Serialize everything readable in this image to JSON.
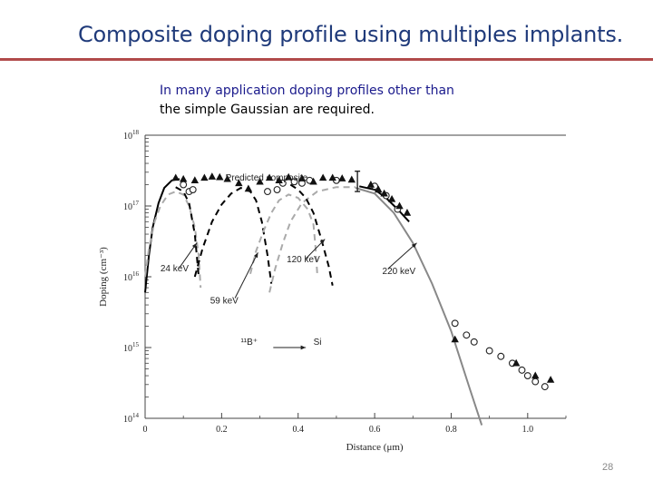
{
  "slide": {
    "title": "Composite doping profile using multiples implants.",
    "body_lines": [
      "In many application doping profiles other than",
      "the simple Gaussian are required."
    ],
    "slide_number": "28"
  },
  "chart_data": {
    "type": "line",
    "title": "",
    "xlabel": "Distance (μm)",
    "ylabel": "Doping (cm⁻³)",
    "xlim": [
      0,
      1.1
    ],
    "ylim": [
      100000000000000.0,
      1e+18
    ],
    "y_scale": "log",
    "x_ticks": [
      {
        "v": 0,
        "label": "0"
      },
      {
        "v": 0.2,
        "label": "0.2"
      },
      {
        "v": 0.4,
        "label": "0.4"
      },
      {
        "v": 0.6,
        "label": "0.6"
      },
      {
        "v": 0.8,
        "label": "0.8"
      },
      {
        "v": 1.0,
        "label": "1.0"
      }
    ],
    "y_ticks": [
      {
        "v": 1e+18,
        "base": "10",
        "exp": "18"
      },
      {
        "v": 1e+17,
        "base": "10",
        "exp": "17"
      },
      {
        "v": 1e+16,
        "base": "10",
        "exp": "16"
      },
      {
        "v": 1000000000000000.0,
        "base": "10",
        "exp": "15"
      },
      {
        "v": 100000000000000.0,
        "base": "10",
        "exp": "14"
      }
    ],
    "annotations": [
      {
        "text": "Predicted composite",
        "x": 0.21,
        "y": 2.3e+17
      },
      {
        "text": "24 keV",
        "x": 0.04,
        "y": 1.2e+16
      },
      {
        "text": "59 keV",
        "x": 0.17,
        "y": 4200000000000000.0
      },
      {
        "text": "120 keV",
        "x": 0.37,
        "y": 1.6e+16
      },
      {
        "text": "220 keV",
        "x": 0.62,
        "y": 1.1e+16
      },
      {
        "text": "¹¹B⁺",
        "x": 0.25,
        "y": 1100000000000000.0
      },
      {
        "text": "Si",
        "x": 0.44,
        "y": 1100000000000000.0
      }
    ],
    "series": [
      {
        "role": "composite-predicted",
        "color": "#000000",
        "dash": "solid",
        "points": [
          [
            0.0,
            6000000000000000.0
          ],
          [
            0.01,
            2e+16
          ],
          [
            0.02,
            5e+16
          ],
          [
            0.035,
            1.1e+17
          ],
          [
            0.05,
            1.8e+17
          ],
          [
            0.07,
            2.3e+17
          ],
          [
            0.09,
            2.4e+17
          ]
        ]
      },
      {
        "role": "24keV-implant",
        "color": "#aaaaaa",
        "dash": "dashed",
        "points": [
          [
            0.0,
            1e+16
          ],
          [
            0.01,
            2.5e+16
          ],
          [
            0.025,
            6e+16
          ],
          [
            0.04,
            1e+17
          ],
          [
            0.06,
            1.45e+17
          ],
          [
            0.08,
            1.6e+17
          ],
          [
            0.1,
            1.45e+17
          ],
          [
            0.115,
            1e+17
          ],
          [
            0.13,
            5e+16
          ],
          [
            0.14,
            2e+16
          ],
          [
            0.145,
            7000000000000000.0
          ]
        ]
      },
      {
        "role": "24keV-implant-dark",
        "color": "#000000",
        "dash": "dashed",
        "points": [
          [
            0.08,
            1.85e+17
          ],
          [
            0.1,
            1.6e+17
          ],
          [
            0.115,
            1.1e+17
          ],
          [
            0.13,
            4e+16
          ],
          [
            0.14,
            1e+16
          ]
        ]
      },
      {
        "role": "59keV-implant",
        "color": "#000000",
        "dash": "dashed",
        "points": [
          [
            0.13,
            1e+16
          ],
          [
            0.15,
            2.5e+16
          ],
          [
            0.175,
            6e+16
          ],
          [
            0.2,
            1.05e+17
          ],
          [
            0.225,
            1.5e+17
          ],
          [
            0.25,
            1.8e+17
          ],
          [
            0.275,
            1.6e+17
          ],
          [
            0.29,
            1.2e+17
          ],
          [
            0.305,
            6e+16
          ],
          [
            0.32,
            2e+16
          ],
          [
            0.33,
            8000000000000000.0
          ]
        ]
      },
      {
        "role": "120keV-implant",
        "color": "#aaaaaa",
        "dash": "dashed",
        "points": [
          [
            0.275,
            1.1e+16
          ],
          [
            0.29,
            2.3e+16
          ],
          [
            0.31,
            4.5e+16
          ],
          [
            0.33,
            8e+16
          ],
          [
            0.35,
            1.2e+17
          ],
          [
            0.375,
            1.45e+17
          ],
          [
            0.4,
            1.3e+17
          ],
          [
            0.425,
            9e+16
          ],
          [
            0.44,
            5.5e+16
          ],
          [
            0.445,
            2.8e+16
          ],
          [
            0.45,
            1.1e+16
          ]
        ]
      },
      {
        "role": "220keV-implant-rise",
        "color": "#aaaaaa",
        "dash": "dashed",
        "points": [
          [
            0.325,
            6000000000000000.0
          ],
          [
            0.34,
            1.3e+16
          ],
          [
            0.36,
            3e+16
          ],
          [
            0.38,
            6e+16
          ],
          [
            0.41,
            1.1e+17
          ],
          [
            0.45,
            1.6e+17
          ],
          [
            0.5,
            1.85e+17
          ],
          [
            0.55,
            1.85e+17
          ]
        ]
      },
      {
        "role": "120keV-implant-dark",
        "color": "#000000",
        "dash": "dashed",
        "points": [
          [
            0.38,
            2e+17
          ],
          [
            0.4,
            1.7e+17
          ],
          [
            0.42,
            1.3e+17
          ],
          [
            0.44,
            8e+16
          ],
          [
            0.46,
            3.5e+16
          ],
          [
            0.48,
            1.4e+16
          ],
          [
            0.49,
            7500000000000000.0
          ]
        ]
      },
      {
        "role": "220keV-tail",
        "color": "#888888",
        "dash": "solid",
        "points": [
          [
            0.55,
            1.8e+17
          ],
          [
            0.6,
            1.5e+17
          ],
          [
            0.65,
            8e+16
          ],
          [
            0.7,
            3e+16
          ],
          [
            0.75,
            8000000000000000.0
          ],
          [
            0.8,
            1700000000000000.0
          ],
          [
            0.85,
            250000000000000.0
          ],
          [
            0.88,
            80000000000000.0
          ]
        ]
      },
      {
        "role": "composite-predicted-tail",
        "color": "#000000",
        "dash": "solid",
        "points": [
          [
            0.56,
            1.9e+17
          ],
          [
            0.6,
            1.7e+17
          ],
          [
            0.63,
            1.3e+17
          ],
          [
            0.66,
            9e+16
          ],
          [
            0.69,
            6e+16
          ]
        ]
      }
    ],
    "markers_triangle": [
      [
        0.08,
        2.5e+17
      ],
      [
        0.1,
        2.4e+17
      ],
      [
        0.13,
        2.3e+17
      ],
      [
        0.155,
        2.5e+17
      ],
      [
        0.175,
        2.6e+17
      ],
      [
        0.195,
        2.55e+17
      ],
      [
        0.215,
        2.4e+17
      ],
      [
        0.245,
        2.1e+17
      ],
      [
        0.27,
        1.75e+17
      ],
      [
        0.3,
        2.2e+17
      ],
      [
        0.325,
        2.5e+17
      ],
      [
        0.35,
        2.3e+17
      ],
      [
        0.375,
        2.55e+17
      ],
      [
        0.41,
        2.45e+17
      ],
      [
        0.44,
        2.2e+17
      ],
      [
        0.465,
        2.5e+17
      ],
      [
        0.49,
        2.5e+17
      ],
      [
        0.515,
        2.45e+17
      ],
      [
        0.54,
        2.35e+17
      ],
      [
        0.59,
        2e+17
      ],
      [
        0.61,
        1.7e+17
      ],
      [
        0.625,
        1.5e+17
      ],
      [
        0.645,
        1.25e+17
      ],
      [
        0.665,
        1e+17
      ],
      [
        0.685,
        8e+16
      ],
      [
        0.81,
        1300000000000000.0
      ],
      [
        0.97,
        600000000000000.0
      ],
      [
        1.02,
        400000000000000.0
      ],
      [
        1.06,
        350000000000000.0
      ]
    ],
    "markers_circle": [
      [
        0.1,
        2e+17
      ],
      [
        0.115,
        1.6e+17
      ],
      [
        0.125,
        1.7e+17
      ],
      [
        0.32,
        1.6e+17
      ],
      [
        0.345,
        1.7e+17
      ],
      [
        0.36,
        2.1e+17
      ],
      [
        0.39,
        2.2e+17
      ],
      [
        0.41,
        2.1e+17
      ],
      [
        0.43,
        2.3e+17
      ],
      [
        0.5,
        2.3e+17
      ],
      [
        0.6,
        1.9e+17
      ],
      [
        0.63,
        1.4e+17
      ],
      [
        0.66,
        9e+16
      ],
      [
        0.81,
        2200000000000000.0
      ],
      [
        0.84,
        1500000000000000.0
      ],
      [
        0.86,
        1200000000000000.0
      ],
      [
        0.9,
        900000000000000.0
      ],
      [
        0.93,
        750000000000000.0
      ],
      [
        0.96,
        600000000000000.0
      ],
      [
        0.985,
        480000000000000.0
      ],
      [
        1.0,
        400000000000000.0
      ],
      [
        1.02,
        330000000000000.0
      ],
      [
        1.045,
        280000000000000.0
      ]
    ]
  }
}
